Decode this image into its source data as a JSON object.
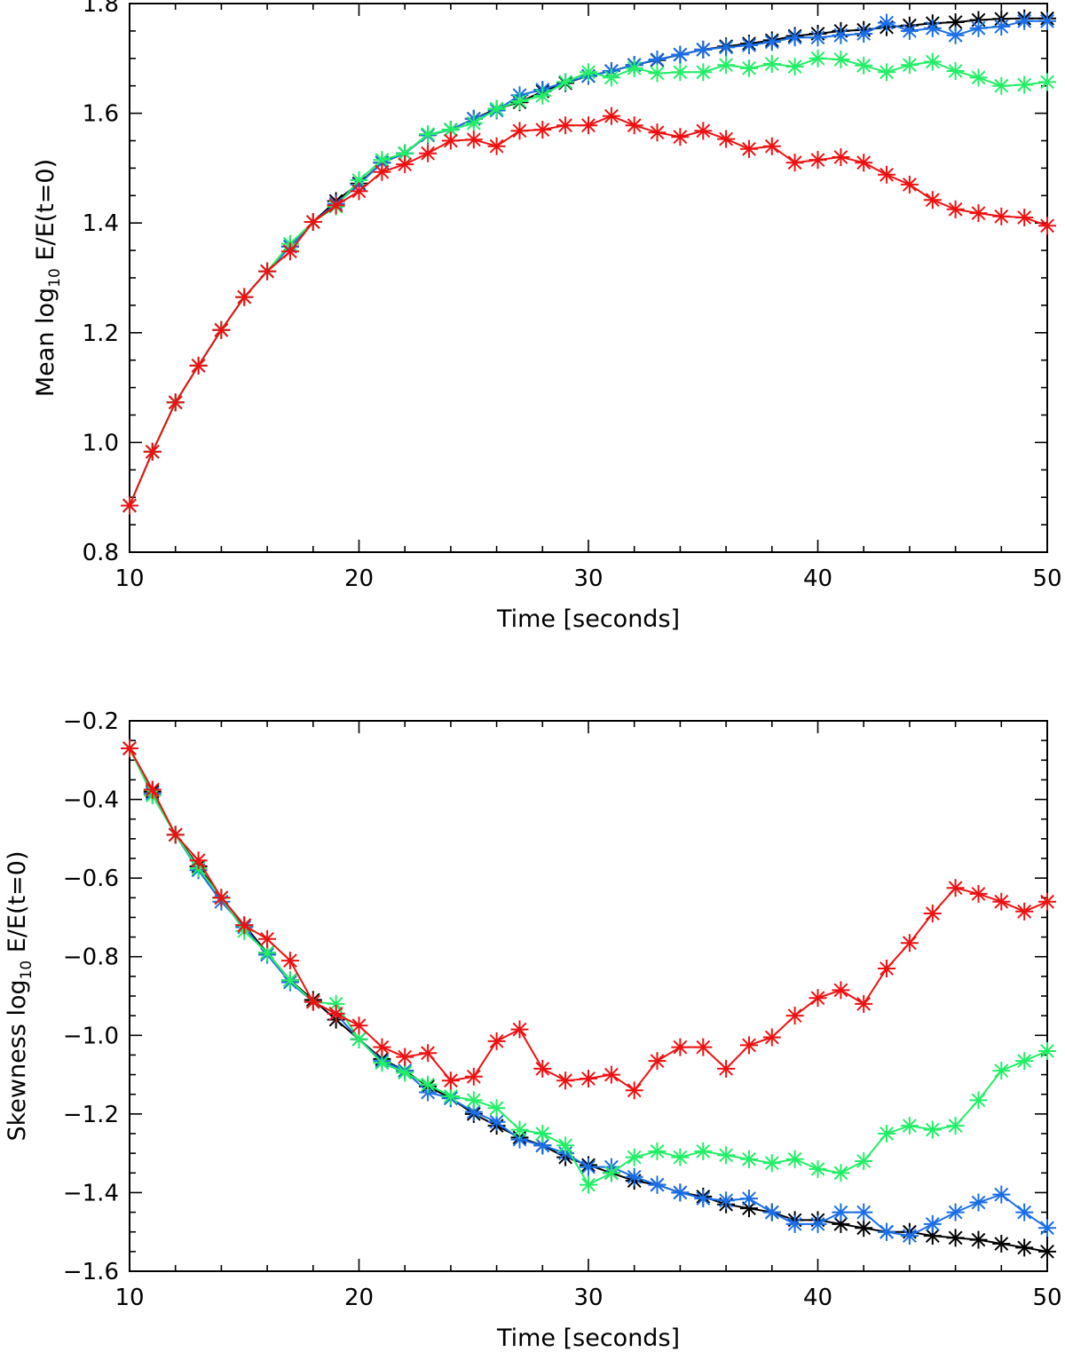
{
  "chart_data": [
    {
      "type": "line",
      "xlabel": "Time [seconds]",
      "ylabel_prefix": "Mean log",
      "ylabel_sub": "10",
      "ylabel_suffix": " E/E(t=0)",
      "xlim": [
        10,
        50
      ],
      "ylim": [
        0.8,
        1.8
      ],
      "x_ticks": [
        10,
        20,
        30,
        40,
        50
      ],
      "y_ticks": [
        "0.8",
        "1.0",
        "1.2",
        "1.4",
        "1.6",
        "1.8"
      ],
      "x": [
        10,
        11,
        12,
        13,
        14,
        15,
        16,
        17,
        18,
        19,
        20,
        21,
        22,
        23,
        24,
        25,
        26,
        27,
        28,
        29,
        30,
        31,
        32,
        33,
        34,
        35,
        36,
        37,
        38,
        39,
        40,
        41,
        42,
        43,
        44,
        45,
        46,
        47,
        48,
        49,
        50
      ],
      "series": [
        {
          "color": "#000000",
          "values": [
            0.885,
            0.983,
            1.073,
            1.14,
            1.205,
            1.265,
            1.312,
            1.357,
            1.402,
            1.44,
            1.472,
            1.51,
            1.527,
            1.56,
            1.57,
            1.59,
            1.608,
            1.62,
            1.64,
            1.655,
            1.668,
            1.677,
            1.688,
            1.697,
            1.707,
            1.716,
            1.722,
            1.727,
            1.733,
            1.741,
            1.745,
            1.75,
            1.752,
            1.757,
            1.76,
            1.764,
            1.766,
            1.77,
            1.772,
            1.773,
            1.773
          ]
        },
        {
          "color": "#1a6ee6",
          "values": [
            0.885,
            0.983,
            1.073,
            1.14,
            1.205,
            1.265,
            1.312,
            1.357,
            1.402,
            1.435,
            1.47,
            1.51,
            1.527,
            1.56,
            1.57,
            1.59,
            1.605,
            1.633,
            1.643,
            1.657,
            1.668,
            1.677,
            1.688,
            1.698,
            1.707,
            1.716,
            1.72,
            1.724,
            1.73,
            1.738,
            1.738,
            1.742,
            1.745,
            1.765,
            1.75,
            1.755,
            1.742,
            1.755,
            1.758,
            1.768,
            1.768
          ]
        },
        {
          "color": "#22ee66",
          "values": [
            0.885,
            0.983,
            1.073,
            1.14,
            1.205,
            1.265,
            1.312,
            1.362,
            1.402,
            1.43,
            1.478,
            1.515,
            1.527,
            1.562,
            1.57,
            1.582,
            1.608,
            1.622,
            1.632,
            1.657,
            1.675,
            1.665,
            1.682,
            1.673,
            1.675,
            1.675,
            1.688,
            1.682,
            1.69,
            1.685,
            1.7,
            1.698,
            1.687,
            1.675,
            1.688,
            1.694,
            1.677,
            1.665,
            1.65,
            1.652,
            1.657
          ]
        },
        {
          "color": "#ee1111",
          "values": [
            0.885,
            0.983,
            1.073,
            1.14,
            1.205,
            1.265,
            1.312,
            1.348,
            1.402,
            1.432,
            1.458,
            1.493,
            1.507,
            1.527,
            1.55,
            1.552,
            1.54,
            1.568,
            1.57,
            1.578,
            1.578,
            1.595,
            1.578,
            1.565,
            1.557,
            1.568,
            1.553,
            1.535,
            1.54,
            1.51,
            1.515,
            1.52,
            1.51,
            1.488,
            1.47,
            1.442,
            1.425,
            1.418,
            1.412,
            1.41,
            1.395
          ]
        }
      ]
    },
    {
      "type": "line",
      "xlabel": "Time [seconds]",
      "ylabel_prefix": "Skewness log",
      "ylabel_sub": "10",
      "ylabel_suffix": " E/E(t=0)",
      "xlim": [
        10,
        50
      ],
      "ylim": [
        -1.6,
        -0.2
      ],
      "x_ticks": [
        10,
        20,
        30,
        40,
        50
      ],
      "y_ticks": [
        "−1.6",
        "−1.4",
        "−1.2",
        "−1.0",
        "−0.8",
        "−0.6",
        "−0.4",
        "−0.2"
      ],
      "x": [
        10,
        11,
        12,
        13,
        14,
        15,
        16,
        17,
        18,
        19,
        20,
        21,
        22,
        23,
        24,
        25,
        26,
        27,
        28,
        29,
        30,
        31,
        32,
        33,
        34,
        35,
        36,
        37,
        38,
        39,
        40,
        41,
        42,
        43,
        44,
        45,
        46,
        47,
        48,
        49,
        50
      ],
      "series": [
        {
          "color": "#000000",
          "values": [
            -0.27,
            -0.38,
            -0.49,
            -0.57,
            -0.65,
            -0.72,
            -0.79,
            -0.86,
            -0.91,
            -0.96,
            -1.01,
            -1.06,
            -1.09,
            -1.13,
            -1.16,
            -1.2,
            -1.23,
            -1.26,
            -1.28,
            -1.31,
            -1.33,
            -1.35,
            -1.37,
            -1.38,
            -1.4,
            -1.41,
            -1.43,
            -1.44,
            -1.45,
            -1.47,
            -1.47,
            -1.48,
            -1.49,
            -1.5,
            -1.5,
            -1.51,
            -1.515,
            -1.52,
            -1.53,
            -1.54,
            -1.55
          ]
        },
        {
          "color": "#1a6ee6",
          "values": [
            -0.27,
            -0.385,
            -0.49,
            -0.58,
            -0.66,
            -0.725,
            -0.795,
            -0.865,
            -0.915,
            -0.945,
            -1.01,
            -1.065,
            -1.09,
            -1.145,
            -1.16,
            -1.195,
            -1.22,
            -1.265,
            -1.28,
            -1.3,
            -1.335,
            -1.335,
            -1.36,
            -1.38,
            -1.4,
            -1.415,
            -1.42,
            -1.415,
            -1.45,
            -1.48,
            -1.48,
            -1.45,
            -1.45,
            -1.5,
            -1.51,
            -1.48,
            -1.45,
            -1.425,
            -1.405,
            -1.45,
            -1.49
          ]
        },
        {
          "color": "#22ee66",
          "values": [
            -0.27,
            -0.39,
            -0.49,
            -0.575,
            -0.65,
            -0.735,
            -0.79,
            -0.86,
            -0.915,
            -0.92,
            -1.01,
            -1.07,
            -1.095,
            -1.125,
            -1.155,
            -1.165,
            -1.185,
            -1.24,
            -1.25,
            -1.28,
            -1.38,
            -1.35,
            -1.31,
            -1.295,
            -1.31,
            -1.295,
            -1.305,
            -1.315,
            -1.325,
            -1.315,
            -1.34,
            -1.35,
            -1.32,
            -1.25,
            -1.23,
            -1.24,
            -1.23,
            -1.165,
            -1.09,
            -1.065,
            -1.04
          ]
        },
        {
          "color": "#ee1111",
          "values": [
            -0.27,
            -0.375,
            -0.49,
            -0.555,
            -0.65,
            -0.72,
            -0.755,
            -0.81,
            -0.915,
            -0.945,
            -0.975,
            -1.03,
            -1.055,
            -1.045,
            -1.115,
            -1.105,
            -1.015,
            -0.985,
            -1.085,
            -1.115,
            -1.11,
            -1.1,
            -1.14,
            -1.065,
            -1.03,
            -1.03,
            -1.085,
            -1.025,
            -1.005,
            -0.95,
            -0.905,
            -0.885,
            -0.92,
            -0.83,
            -0.765,
            -0.69,
            -0.625,
            -0.64,
            -0.66,
            -0.685,
            -0.66
          ]
        }
      ]
    }
  ]
}
